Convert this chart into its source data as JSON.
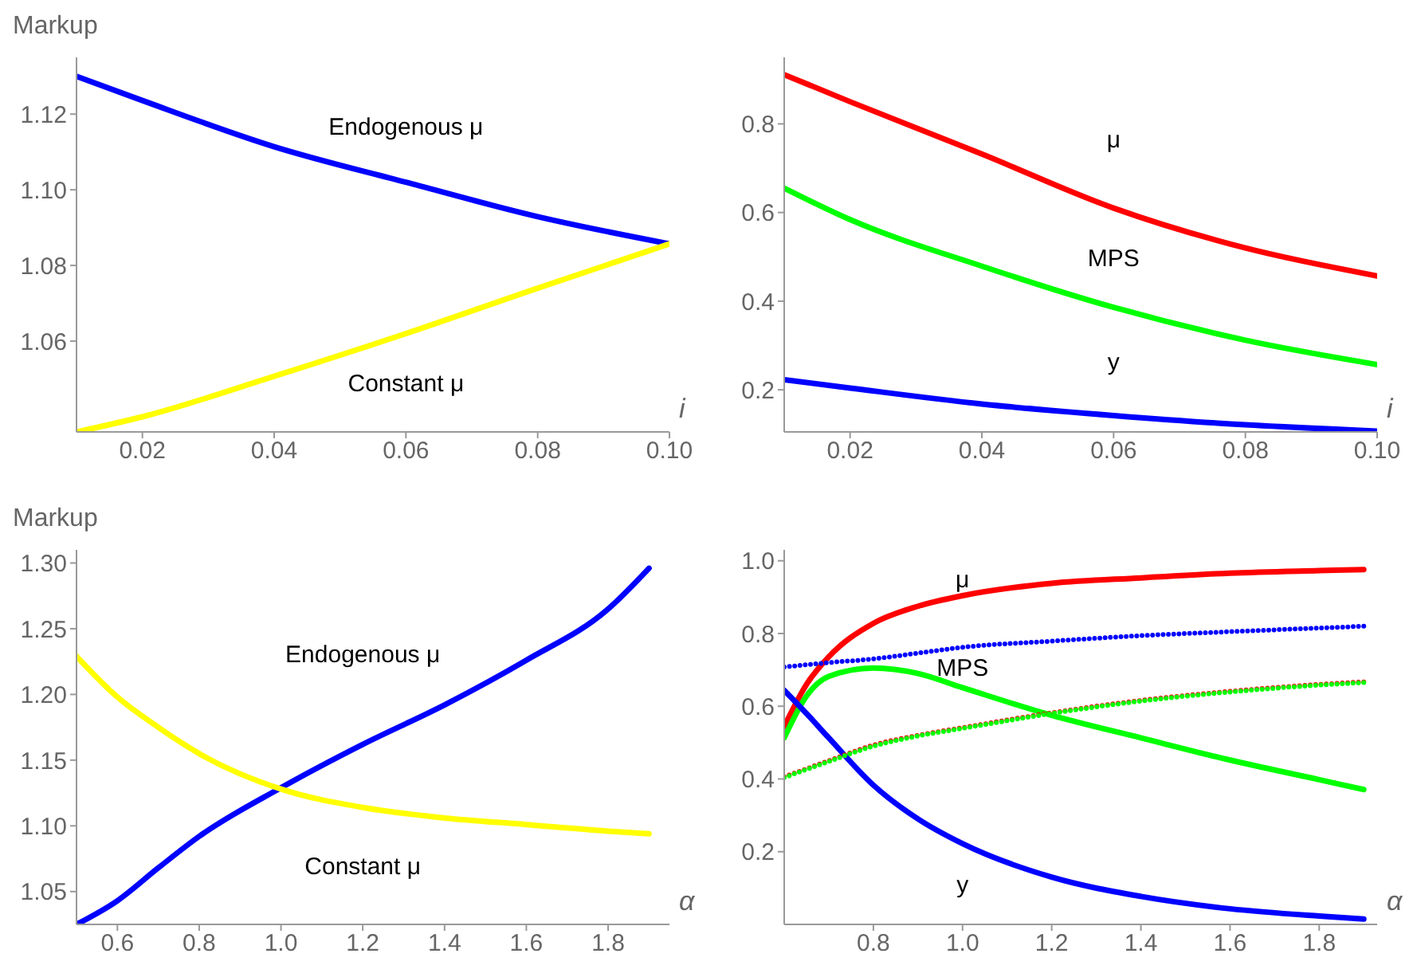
{
  "chart_data": [
    {
      "type": "line",
      "ylabel": "Markup",
      "xlabel": "i",
      "x": [
        0.01,
        0.02,
        0.04,
        0.06,
        0.08,
        0.1
      ],
      "xlim": [
        0.01,
        0.1
      ],
      "ylim": [
        1.036,
        1.135
      ],
      "xticks": [
        {
          "value": 0.02,
          "label": "0.02"
        },
        {
          "value": 0.04,
          "label": "0.04"
        },
        {
          "value": 0.06,
          "label": "0.06"
        },
        {
          "value": 0.08,
          "label": "0.08"
        },
        {
          "value": 0.1,
          "label": "0.10"
        }
      ],
      "yticks": [
        {
          "value": 1.06,
          "label": "1.06"
        },
        {
          "value": 1.08,
          "label": "1.08"
        },
        {
          "value": 1.1,
          "label": "1.10"
        },
        {
          "value": 1.12,
          "label": "1.12"
        }
      ],
      "series": [
        {
          "name": "Endogenous μ",
          "color": "#0000ff",
          "values": [
            1.13,
            1.1236,
            1.1114,
            1.102,
            1.0929,
            1.0857
          ]
        },
        {
          "name": "Constant μ",
          "color": "#ffff00",
          "values": [
            1.036,
            1.04,
            1.0507,
            1.062,
            1.074,
            1.0857
          ]
        }
      ]
    },
    {
      "type": "line",
      "xlabel": "i",
      "x": [
        0.01,
        0.02,
        0.04,
        0.06,
        0.08,
        0.1
      ],
      "xlim": [
        0.01,
        0.1
      ],
      "ylim": [
        0.105,
        0.95
      ],
      "xticks": [
        {
          "value": 0.02,
          "label": "0.02"
        },
        {
          "value": 0.04,
          "label": "0.04"
        },
        {
          "value": 0.06,
          "label": "0.06"
        },
        {
          "value": 0.08,
          "label": "0.08"
        },
        {
          "value": 0.1,
          "label": "0.10"
        }
      ],
      "yticks": [
        0.2,
        0.4,
        0.6,
        0.8
      ],
      "series": [
        {
          "name": "μ",
          "color": "#ff0000",
          "values": [
            0.911,
            0.85,
            0.732,
            0.61,
            0.52,
            0.457
          ]
        },
        {
          "name": "MPS",
          "color": "#00ff00",
          "values": [
            0.655,
            0.584,
            0.479,
            0.386,
            0.312,
            0.257
          ]
        },
        {
          "name": "y",
          "color": "#0000ff",
          "values": [
            0.223,
            0.204,
            0.168,
            0.142,
            0.121,
            0.107
          ]
        }
      ]
    },
    {
      "type": "line",
      "ylabel": "Markup",
      "xlabel": "α",
      "x": [
        0.5,
        0.6,
        0.7,
        0.8,
        1.0,
        1.2,
        1.4,
        1.6,
        1.8,
        1.9
      ],
      "xlim": [
        0.5,
        1.95
      ],
      "ylim": [
        1.025,
        1.31
      ],
      "xticks": [
        {
          "value": 0.6,
          "label": "0.6"
        },
        {
          "value": 0.8,
          "label": "0.8"
        },
        {
          "value": 1.0,
          "label": "1.0"
        },
        {
          "value": 1.2,
          "label": "1.2"
        },
        {
          "value": 1.4,
          "label": "1.4"
        },
        {
          "value": 1.6,
          "label": "1.6"
        },
        {
          "value": 1.8,
          "label": "1.8"
        }
      ],
      "yticks": [
        1.05,
        {
          "value": 1.1,
          "label": "1.10"
        },
        1.15,
        {
          "value": 1.2,
          "label": "1.20"
        },
        1.25,
        {
          "value": 1.3,
          "label": "1.30"
        }
      ],
      "series": [
        {
          "name": "Endogenous μ",
          "color": "#0000ff",
          "values": [
            1.025,
            1.043,
            1.068,
            1.092,
            1.129,
            1.162,
            1.192,
            1.226,
            1.265,
            1.296
          ]
        },
        {
          "name": "Constant μ",
          "color": "#ffff00",
          "values": [
            1.229,
            1.198,
            1.175,
            1.155,
            1.128,
            1.114,
            1.106,
            1.101,
            1.096,
            1.094
          ]
        }
      ]
    },
    {
      "type": "line",
      "xlabel": "α",
      "x": [
        0.6,
        0.65,
        0.7,
        0.8,
        0.9,
        1.0,
        1.2,
        1.4,
        1.6,
        1.8,
        1.9
      ],
      "xlim": [
        0.6,
        1.93
      ],
      "ylim": [
        0,
        1.03
      ],
      "xticks": [
        {
          "value": 0.8,
          "label": "0.8"
        },
        {
          "value": 1.0,
          "label": "1.0"
        },
        {
          "value": 1.2,
          "label": "1.2"
        },
        {
          "value": 1.4,
          "label": "1.4"
        },
        {
          "value": 1.6,
          "label": "1.6"
        },
        {
          "value": 1.8,
          "label": "1.8"
        }
      ],
      "yticks": [
        0.2,
        0.4,
        0.6,
        0.8,
        {
          "value": 1.0,
          "label": "1.0"
        }
      ],
      "series": [
        {
          "name": "μ",
          "color": "#ff0000",
          "values": [
            0.544,
            0.66,
            0.736,
            0.828,
            0.875,
            0.904,
            0.938,
            0.953,
            0.966,
            0.973,
            0.976
          ]
        },
        {
          "name": "MPS",
          "color": "#00ff00",
          "values": [
            0.513,
            0.628,
            0.682,
            0.705,
            0.69,
            0.651,
            0.575,
            0.513,
            0.452,
            0.398,
            0.371
          ]
        },
        {
          "name": "y",
          "color": "#0000ff",
          "values": [
            0.644,
            0.58,
            0.513,
            0.383,
            0.29,
            0.222,
            0.13,
            0.077,
            0.043,
            0.023,
            0.015
          ]
        },
        {
          "color": "#0000ff",
          "line_style": "dotted",
          "values": [
            0.708,
            0.714,
            0.72,
            0.73,
            0.746,
            0.762,
            0.779,
            0.794,
            0.805,
            0.815,
            0.82
          ]
        },
        {
          "color": "#ff0000",
          "line_style": "dotted",
          "values": [
            0.406,
            0.428,
            0.45,
            0.493,
            0.52,
            0.541,
            0.582,
            0.616,
            0.641,
            0.66,
            0.667
          ]
        },
        {
          "color": "#00ff00",
          "line_style": "dotted",
          "values": [
            0.404,
            0.426,
            0.448,
            0.49,
            0.518,
            0.539,
            0.58,
            0.614,
            0.639,
            0.658,
            0.665
          ]
        }
      ]
    }
  ]
}
